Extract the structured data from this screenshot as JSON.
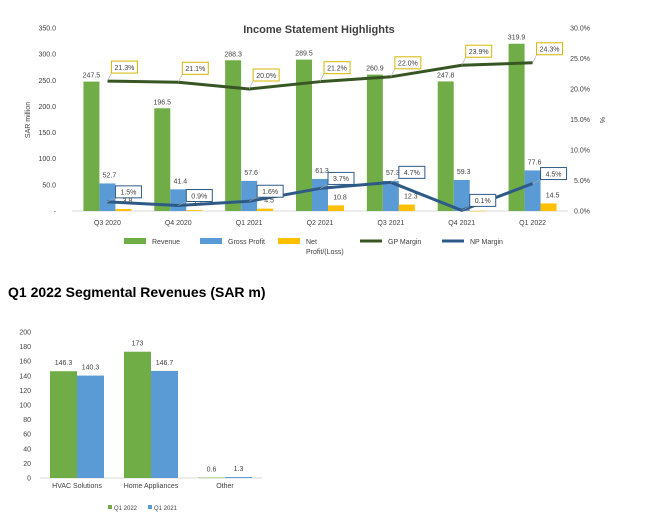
{
  "colors": {
    "revenue": "#70AD47",
    "gross_profit": "#5B9BD5",
    "net": "#FFC000",
    "gp_margin": "#375623",
    "np_margin": "#2E5A87",
    "gp_label_border": "#D6B600",
    "np_label_border": "#2E5A87"
  },
  "chart_data": [
    {
      "type": "bar",
      "title": "Income Statement Highlights",
      "ylabel": "SAR million",
      "y2label": "%",
      "ylim": [
        0,
        350
      ],
      "y2lim": [
        0,
        30
      ],
      "y_ticks": [
        "-",
        "50.0",
        "100.0",
        "150.0",
        "200.0",
        "250.0",
        "300.0",
        "350.0"
      ],
      "y2_ticks": [
        "0.0%",
        "5.0%",
        "10.0%",
        "15.0%",
        "20.0%",
        "25.0%",
        "30.0%"
      ],
      "categories": [
        "Q3 2020",
        "Q4 2020",
        "Q1 2021",
        "Q2 2021",
        "Q3 2021",
        "Q4 2021",
        "Q1 2022"
      ],
      "series": [
        {
          "name": "Revenue",
          "kind": "bar",
          "values": [
            247.5,
            196.5,
            288.3,
            289.5,
            260.9,
            247.8,
            319.9
          ],
          "labels": [
            "247.5",
            "196.5",
            "288.3",
            "289.5",
            "260.9",
            "247.8",
            "319.9"
          ]
        },
        {
          "name": "Gross Profit",
          "kind": "bar",
          "values": [
            52.7,
            41.4,
            57.6,
            61.3,
            57.3,
            59.3,
            77.6
          ],
          "labels": [
            "52.7",
            "41.4",
            "57.6",
            "61.3",
            "57.3",
            "59.3",
            "77.6"
          ]
        },
        {
          "name": "Net Profit/(Loss)",
          "kind": "bar",
          "values": [
            3.8,
            1.7,
            4.5,
            10.8,
            12.3,
            0.3,
            14.5
          ],
          "labels": [
            "3.8",
            "1.7",
            "4.5",
            "10.8",
            "12.3",
            "0.3",
            "14.5"
          ]
        },
        {
          "name": "GP Margin",
          "kind": "line",
          "axis": "right",
          "values": [
            21.3,
            21.1,
            20.0,
            21.2,
            22.0,
            23.9,
            24.3
          ],
          "labels": [
            "21.3%",
            "21.1%",
            "20.0%",
            "21.2%",
            "22.0%",
            "23.9%",
            "24.3%"
          ]
        },
        {
          "name": "NP Margin",
          "kind": "line",
          "axis": "right",
          "values": [
            1.5,
            0.9,
            1.6,
            3.7,
            4.7,
            0.1,
            4.5
          ],
          "labels": [
            "1.5%",
            "0.9%",
            "1.6%",
            "3.7%",
            "4.7%",
            "0.1%",
            "4.5%"
          ]
        }
      ],
      "legend": {
        "placement": "bottom",
        "items": [
          "Revenue",
          "Gross Profit",
          "Net",
          "GP Margin",
          "NP Margin"
        ],
        "net_label_line2": "Profit/(Loss)"
      },
      "grid": false
    },
    {
      "type": "bar",
      "title": "Q1 2022 Segmental Revenues (SAR m)",
      "ylim": [
        0,
        200
      ],
      "y_ticks": [
        "0",
        "20",
        "40",
        "60",
        "80",
        "100",
        "120",
        "140",
        "160",
        "180",
        "200"
      ],
      "categories": [
        "HVAC Solutions",
        "Home Appliances",
        "Other"
      ],
      "series": [
        {
          "name": "Q1 2022",
          "values": [
            146.3,
            173,
            0.6
          ],
          "labels": [
            "146.3",
            "173",
            "0.6"
          ]
        },
        {
          "name": "Q1 2021",
          "values": [
            140.3,
            146.7,
            1.3
          ],
          "labels": [
            "140.3",
            "146.7",
            "1.3"
          ]
        }
      ],
      "legend": {
        "placement": "bottom",
        "items": [
          "Q1 2022",
          "Q1 2021"
        ]
      },
      "grid": false
    }
  ]
}
